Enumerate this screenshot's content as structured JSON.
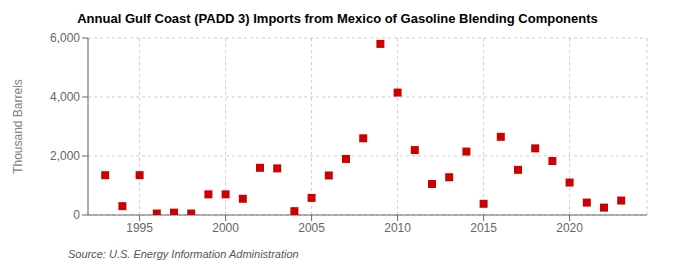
{
  "chart_data": {
    "type": "scatter",
    "title": "Annual Gulf Coast (PADD 3) Imports from Mexico of Gasoline Blending Components",
    "ylabel": "Thousand Barrels",
    "annotations": [
      "Source: U.S. Energy Information Administration"
    ],
    "x": [
      1993,
      1994,
      1995,
      1996,
      1997,
      1998,
      1999,
      2000,
      2001,
      2002,
      2003,
      2004,
      2005,
      2006,
      2007,
      2008,
      2009,
      2010,
      2011,
      2012,
      2013,
      2014,
      2015,
      2016,
      2017,
      2018,
      2019,
      2020,
      2021,
      2022,
      2023
    ],
    "values": [
      1350,
      300,
      1350,
      50,
      80,
      50,
      700,
      700,
      550,
      1600,
      1580,
      130,
      580,
      1340,
      1900,
      2600,
      5800,
      4150,
      2200,
      1050,
      1280,
      2150,
      380,
      2650,
      1530,
      2260,
      1830,
      1100,
      420,
      250,
      490
    ],
    "color": "#cc0000",
    "marker": "square",
    "xlim": [
      1992.0,
      2024.5
    ],
    "xticks": [
      1995,
      2000,
      2005,
      2010,
      2015,
      2020
    ],
    "ylim": [
      0,
      6000
    ],
    "yticks": [
      0,
      {
        "value": 2000,
        "label": "2,000"
      },
      {
        "value": 4000,
        "label": "4,000"
      },
      {
        "value": 6000,
        "label": "6,000"
      }
    ],
    "grid": true
  }
}
